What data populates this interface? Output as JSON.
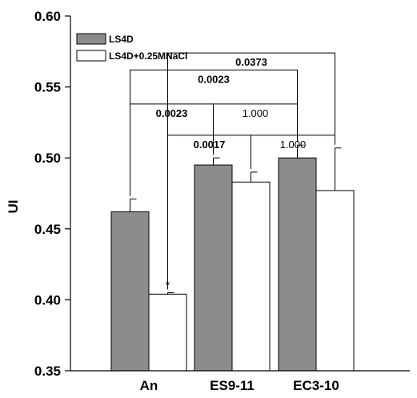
{
  "chart_data": {
    "type": "bar",
    "ylabel": "UI",
    "ylim": [
      0.35,
      0.6
    ],
    "yticks": [
      "0.35",
      "0.40",
      "0.45",
      "0.50",
      "0.55",
      "0.60"
    ],
    "categories": [
      "An",
      "ES9-11",
      "EC3-10"
    ],
    "series": [
      {
        "name": "LS4D",
        "color": "#8c8c8c",
        "values": [
          0.462,
          0.495,
          0.5
        ],
        "errors": [
          0.009,
          0.005,
          0.009
        ]
      },
      {
        "name": "LS4D+0.25MNaCl",
        "color": "#ffffff",
        "values": [
          0.404,
          0.483,
          0.477
        ],
        "errors": [
          0.001,
          0.007,
          0.03
        ]
      }
    ],
    "grid": false,
    "legend_position": "top-left",
    "annotations": [
      {
        "text": "*",
        "category": 0,
        "series": 1
      },
      {
        "text": "0.0373",
        "bold": true,
        "from": [
          0,
          1
        ],
        "to": [
          2,
          1
        ],
        "y": 0.574
      },
      {
        "text": "0.0023",
        "bold": true,
        "from": [
          0,
          0
        ],
        "to": [
          2,
          0
        ],
        "y": 0.562
      },
      {
        "text": "0.0023",
        "bold": true,
        "from": [
          0,
          0
        ],
        "to": [
          1,
          0
        ],
        "y": 0.538
      },
      {
        "text": "1.000",
        "bold": false,
        "from": [
          1,
          0
        ],
        "to": [
          2,
          0
        ],
        "y": 0.538
      },
      {
        "text": "0.0017",
        "bold": true,
        "from": [
          0,
          1
        ],
        "to": [
          1,
          1
        ],
        "y": 0.516
      },
      {
        "text": "1.000",
        "bold": false,
        "from": [
          1,
          1
        ],
        "to": [
          2,
          1
        ],
        "y": 0.516
      }
    ]
  }
}
